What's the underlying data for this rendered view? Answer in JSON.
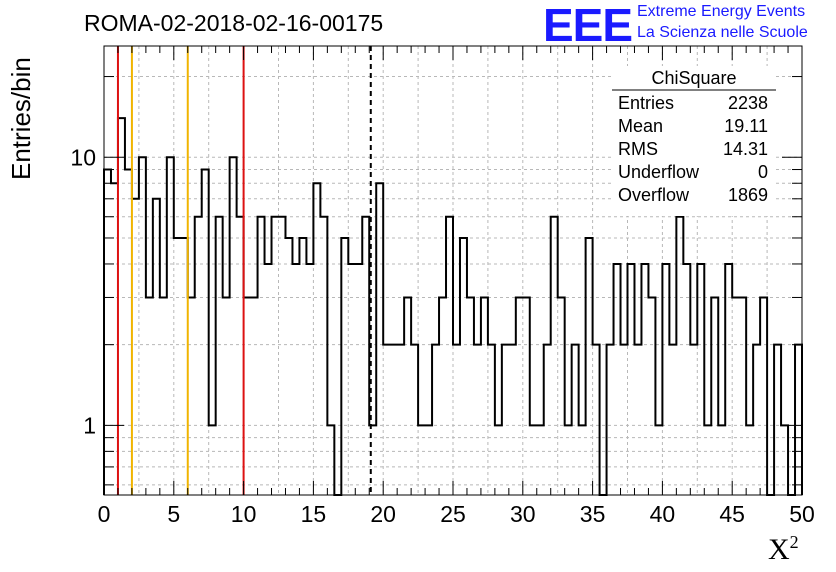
{
  "chart_data": {
    "type": "bar",
    "title": "ROMA-02-2018-02-16-00175",
    "xlabel": "X",
    "xlabel_sup": "2",
    "ylabel": "Entries/bin",
    "xlim": [
      0,
      50
    ],
    "ylim": [
      0.55,
      26
    ],
    "log_y": true,
    "grid": true,
    "bin_width": 0.5,
    "x_ticks": [
      "0",
      "5",
      "10",
      "15",
      "20",
      "25",
      "30",
      "35",
      "40",
      "45",
      "50"
    ],
    "y_ticks": [
      "1",
      "10"
    ],
    "values": [
      9,
      8,
      14,
      9,
      7,
      10,
      3,
      7,
      3,
      10,
      5,
      5,
      3,
      6,
      9,
      1,
      6,
      3,
      10,
      6,
      3,
      3,
      6,
      4,
      6,
      6,
      5,
      4,
      5,
      4,
      8,
      6,
      1,
      0,
      5,
      4,
      4,
      6,
      1,
      8,
      2,
      2,
      2,
      3,
      2,
      1,
      1,
      2,
      3,
      6,
      2,
      5,
      3,
      2,
      3,
      2,
      1,
      2,
      2,
      3,
      3,
      1,
      1,
      2,
      6,
      3,
      1,
      2,
      1,
      5,
      2,
      0,
      2,
      4,
      2,
      4,
      2,
      4,
      3,
      1,
      4,
      2,
      6,
      4,
      2,
      4,
      1,
      3,
      1,
      4,
      3,
      3,
      1,
      2,
      3,
      0,
      2,
      1,
      0,
      2
    ],
    "vertical_lines": [
      {
        "x": 1,
        "color": "#dd1111",
        "style": "solid"
      },
      {
        "x": 2,
        "color": "#f0b400",
        "style": "solid"
      },
      {
        "x": 6,
        "color": "#f0b400",
        "style": "solid"
      },
      {
        "x": 10,
        "color": "#dd1111",
        "style": "solid"
      },
      {
        "x": 19.11,
        "color": "#000000",
        "style": "dashed"
      }
    ],
    "stats_box": {
      "name": "ChiSquare",
      "rows": [
        {
          "label": "Entries",
          "value": "2238"
        },
        {
          "label": "Mean",
          "value": "19.11"
        },
        {
          "label": "RMS",
          "value": "14.31"
        },
        {
          "label": "Underflow",
          "value": "0"
        },
        {
          "label": "Overflow",
          "value": "1869"
        }
      ]
    }
  },
  "logo": {
    "mark": "EEE",
    "line1": "Extreme Energy Events",
    "line2": "La Scienza nelle Scuole"
  }
}
